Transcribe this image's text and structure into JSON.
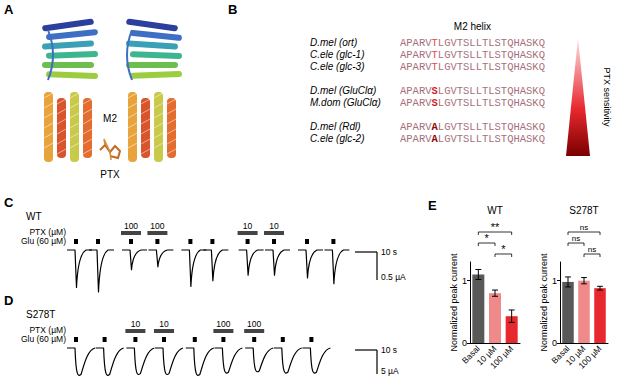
{
  "panel_a": {
    "letter": "A",
    "helix_label": "M2",
    "drug_label": "PTX"
  },
  "panel_b": {
    "letter": "B",
    "header": "M2 helix",
    "sensitivity_label": "PTX sensitivity",
    "sequence_color": "#a5707c",
    "groups": [
      {
        "highlight": 5,
        "highlight_color": "#e8474f",
        "bold": false,
        "rows": [
          {
            "name": "D.mel (ort)",
            "sequence": "APARVTLGVTSLLTLSTQHASKQ"
          },
          {
            "name": "C.ele (glc-1)",
            "sequence": "APARVTLGVTSLLTLSTQHASKQ"
          },
          {
            "name": "C.ele (glc-3)",
            "sequence": "APARVTLGVTSLLTLSTQHASKQ"
          }
        ]
      },
      {
        "highlight": 5,
        "highlight_color": "#d01f2a",
        "bold": true,
        "rows": [
          {
            "name": "D.mel (GluClα)",
            "sequence": "APARVSLGVTSLLTLSTQHASKQ"
          },
          {
            "name": "M.dom (GluClα)",
            "sequence": "APARVSLGVTSLLTLSTQHASKQ"
          }
        ]
      },
      {
        "highlight": 5,
        "highlight_color": "#8b0a0a",
        "bold": true,
        "rows": [
          {
            "name": "D.mel (Rdl)",
            "sequence": "APARVALGVTSLLTLSTQHASKQ"
          },
          {
            "name": "C.ele (glc-2)",
            "sequence": "APARVALGVTSLLTLSTQHASKQ"
          }
        ]
      }
    ]
  },
  "traces": [
    {
      "letter": "C",
      "condition": "WT",
      "ptx_label": "PTX (µM)",
      "glu_label": "Glu (60 µM)",
      "shape": "fast",
      "scale_bar": {
        "time": 10,
        "time_label": "10 s",
        "current": 0.5,
        "current_label": "0.5 µA"
      },
      "pulses": [
        {
          "t": 0,
          "peak": 0.67,
          "ptx": null
        },
        {
          "t": 10,
          "peak": 0.75,
          "ptx": null
        },
        {
          "t": 25,
          "peak": 0.35,
          "ptx": 100
        },
        {
          "t": 37,
          "peak": 0.3,
          "ptx": 100
        },
        {
          "t": 52,
          "peak": 0.65,
          "ptx": null
        },
        {
          "t": 62,
          "peak": 0.55,
          "ptx": null
        },
        {
          "t": 78,
          "peak": 0.45,
          "ptx": 10
        },
        {
          "t": 90,
          "peak": 0.45,
          "ptx": 10
        },
        {
          "t": 105,
          "peak": 0.5,
          "ptx": null
        },
        {
          "t": 117,
          "peak": 0.6,
          "ptx": null
        }
      ]
    },
    {
      "letter": "D",
      "condition": "S278T",
      "ptx_label": "PTX (µM)",
      "glu_label": "Glu (60 µM)",
      "shape": "slow",
      "scale_bar": {
        "time": 10,
        "time_label": "10 s",
        "current": 5,
        "current_label": "5 µA"
      },
      "pulses": [
        {
          "t": 0,
          "peak": 6,
          "ptx": null
        },
        {
          "t": 13,
          "peak": 6,
          "ptx": null
        },
        {
          "t": 27,
          "peak": 5.8,
          "ptx": 10
        },
        {
          "t": 40,
          "peak": 5.8,
          "ptx": 10
        },
        {
          "t": 54,
          "peak": 6,
          "ptx": null
        },
        {
          "t": 67,
          "peak": 5.5,
          "ptx": 100
        },
        {
          "t": 81,
          "peak": 5.2,
          "ptx": 100
        },
        {
          "t": 94,
          "peak": 5.5,
          "ptx": null
        },
        {
          "t": 107,
          "peak": 5.5,
          "ptx": null
        }
      ]
    }
  ],
  "panel_e_letter": "E",
  "chart_data": [
    {
      "type": "bar",
      "title": "WT",
      "categories": [
        "Basal",
        "10 µM",
        "100 µM"
      ],
      "values": [
        1.1,
        0.8,
        0.43
      ],
      "errors": [
        0.08,
        0.05,
        0.1
      ],
      "colors": [
        "#595959",
        "#f08a8a",
        "#e8282f"
      ],
      "ylabel": "Normalized peak current",
      "ylim": [
        0,
        1.3
      ],
      "yticks": [
        0,
        1
      ],
      "grid": false,
      "significance": [
        {
          "from": 1,
          "to": 2,
          "label": "*"
        },
        {
          "from": 0,
          "to": 1,
          "label": "*"
        },
        {
          "from": 0,
          "to": 2,
          "label": "**"
        }
      ]
    },
    {
      "type": "bar",
      "title": "S278T",
      "categories": [
        "Basal",
        "10 µM",
        "100 µM"
      ],
      "values": [
        0.98,
        1.0,
        0.88
      ],
      "errors": [
        0.08,
        0.05,
        0.03
      ],
      "colors": [
        "#595959",
        "#f08a8a",
        "#e8282f"
      ],
      "ylabel": "Normalized peak current",
      "ylim": [
        0,
        1.3
      ],
      "yticks": [
        0,
        1
      ],
      "grid": false,
      "significance": [
        {
          "from": 1,
          "to": 2,
          "label": "ns"
        },
        {
          "from": 0,
          "to": 1,
          "label": "ns"
        },
        {
          "from": 0,
          "to": 2,
          "label": "ns"
        }
      ]
    }
  ]
}
